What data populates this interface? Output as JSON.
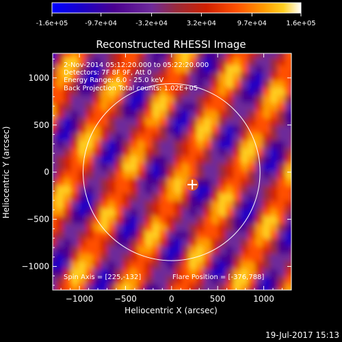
{
  "colorbar": {
    "tick_labels": [
      "-1.6e+05",
      "-9.7e+04",
      "-3.2e+04",
      "3.2e+04",
      "9.7e+04",
      "1.6e+05"
    ],
    "tick_values": [
      -160000,
      -97000,
      -32000,
      32000,
      97000,
      160000
    ],
    "range": [
      -160000,
      160000
    ],
    "colormap": [
      "#0000ff",
      "#1a00c8",
      "#4a0090",
      "#6e2a9a",
      "#9a2a3a",
      "#d02000",
      "#ff5000",
      "#ff9a00",
      "#ffd020",
      "#ffffff"
    ]
  },
  "chart_data": {
    "type": "heatmap",
    "title": "Reconstructed RHESSI Image",
    "xlabel": "Heliocentric X (arcsec)",
    "ylabel": "Heliocentric Y (arcsec)",
    "xlim": [
      -1290,
      1300
    ],
    "ylim": [
      -1250,
      1260
    ],
    "x_ticks": [
      -1000,
      -500,
      0,
      500,
      1000
    ],
    "x_tick_labels": [
      "−1000",
      "−500",
      "0",
      "500",
      "1000"
    ],
    "y_ticks": [
      -1000,
      -500,
      0,
      500,
      1000
    ],
    "y_tick_labels": [
      "−1000",
      "−500",
      "0",
      "500",
      "1000"
    ],
    "grid": false,
    "solar_limb_radius": 960,
    "flare_marker": [
      225,
      -132
    ],
    "annotations": [
      "2-Nov-2014 05:12:20.000 to 05:22:20.000",
      "Detectors: 7F 8F 9F, Att 0",
      "Energy Range: 6.0 - 25.0 keV",
      "Back Projection    Total counts: 1.02E+05"
    ],
    "spin_axis_text": "Spin Axis = [225,-132]",
    "flare_position_text": "Flare Position = [-376,788]"
  },
  "footer": {
    "timestamp": "19-Jul-2017 15:13"
  }
}
